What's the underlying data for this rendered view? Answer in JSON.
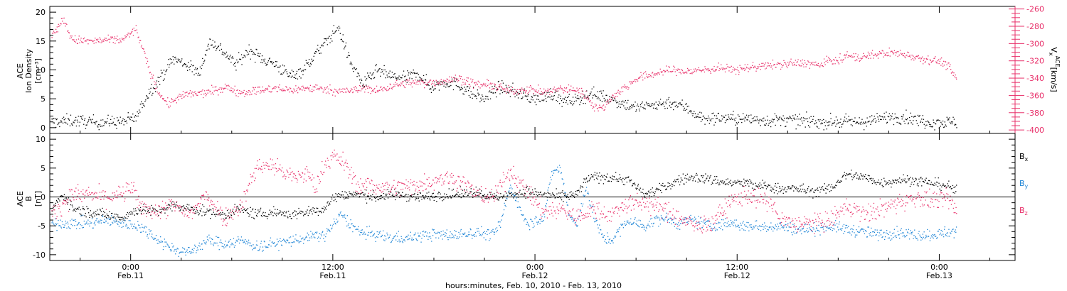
{
  "xlabel": "hours:minutes, Feb. 10, 2010 - Feb. 13, 2010",
  "colors": {
    "black": "#000000",
    "magenta": "#e8306a",
    "blue": "#1f85d6"
  },
  "chart_data": [
    {
      "type": "scatter",
      "panel": "top",
      "ylabel_lines": [
        "ACE",
        "Ion Density"
      ],
      "yunit": "[cm⁻³]",
      "ylim": [
        -1,
        21
      ],
      "yticks": [
        "0",
        "5",
        "10",
        "15",
        "20"
      ],
      "y2label_main": "V",
      "y2label_sub": "x",
      "y2label_sup": "ACE",
      "y2unit": "[km/s]",
      "y2lim": [
        -404,
        -257
      ],
      "y2ticks": [
        "-260",
        "-280",
        "-300",
        "-320",
        "-340",
        "-360",
        "-380",
        "-400"
      ],
      "x_unit": "hours since 00:00 Feb. 10, 2010",
      "xlim": [
        19.2,
        76.5
      ],
      "series": [
        {
          "var": "density",
          "axis": "left",
          "color": "#000000",
          "x": [
            19.3,
            20.5,
            22.0,
            23.5,
            24.3,
            25.0,
            25.7,
            26.5,
            27.3,
            28.0,
            28.7,
            29.4,
            30.2,
            31.0,
            31.8,
            32.6,
            33.4,
            34.2,
            35.0,
            35.6,
            36.3,
            37.0,
            37.8,
            38.6,
            39.4,
            40.2,
            41.0,
            41.8,
            42.6,
            43.4,
            44.2,
            45.0,
            45.8,
            46.6,
            47.4,
            48.2,
            49.0,
            49.7,
            50.5,
            51.3,
            52.0,
            53.0,
            54.0,
            55.0,
            56.0,
            57.0,
            58.0,
            59.0,
            60.0,
            61.0,
            62.0,
            63.0,
            64.0,
            65.0,
            66.0,
            67.0,
            68.0,
            69.0,
            70.0,
            71.5,
            73.0
          ],
          "y": [
            1.0,
            1.3,
            1.0,
            1.1,
            1.8,
            6.0,
            8.5,
            12.0,
            11.0,
            9.5,
            15.0,
            13.5,
            11.0,
            13.5,
            12.0,
            11.0,
            9.0,
            10.0,
            13.0,
            15.0,
            17.5,
            11.5,
            7.5,
            10.0,
            9.0,
            8.5,
            9.5,
            7.0,
            8.0,
            7.5,
            6.0,
            5.0,
            7.0,
            6.5,
            5.5,
            5.0,
            6.0,
            4.5,
            5.0,
            6.0,
            5.5,
            4.5,
            3.5,
            4.0,
            4.5,
            3.5,
            1.5,
            1.8,
            1.6,
            1.5,
            1.3,
            1.4,
            1.2,
            1.0,
            1.1,
            1.0,
            1.2,
            2.0,
            1.8,
            1.0,
            1.0
          ]
        },
        {
          "var": "Vx",
          "axis": "right",
          "color": "#e8306a",
          "x": [
            19.3,
            20.0,
            20.5,
            21.5,
            22.5,
            23.5,
            24.3,
            25.0,
            25.6,
            26.2,
            26.8,
            27.5,
            28.3,
            29.0,
            29.6,
            30.5,
            31.5,
            32.5,
            33.5,
            34.5,
            35.5,
            36.5,
            37.5,
            38.0,
            38.5,
            39.5,
            40.5,
            41.5,
            42.5,
            43.5,
            44.5,
            45.5,
            46.5,
            47.5,
            48.5,
            49.5,
            50.5,
            51.0,
            51.5,
            52.0,
            52.5,
            53.0,
            53.5,
            54.0,
            55.0,
            56.0,
            57.0,
            58.0,
            59.0,
            60.0,
            61.0,
            62.0,
            63.0,
            64.0,
            65.0,
            65.5,
            66.0,
            66.5,
            67.0,
            68.0,
            69.0,
            70.0,
            71.0,
            72.0,
            72.5,
            73.0
          ],
          "y": [
            -290,
            -272,
            -295,
            -297,
            -296,
            -295,
            -283,
            -325,
            -355,
            -370,
            -362,
            -358,
            -357,
            -354,
            -350,
            -356,
            -354,
            -352,
            -353,
            -351,
            -352,
            -355,
            -353,
            -350,
            -355,
            -348,
            -345,
            -345,
            -343,
            -340,
            -347,
            -348,
            -355,
            -352,
            -356,
            -352,
            -353,
            -360,
            -372,
            -375,
            -362,
            -355,
            -348,
            -340,
            -335,
            -330,
            -332,
            -330,
            -328,
            -330,
            -326,
            -325,
            -323,
            -322,
            -325,
            -318,
            -320,
            -313,
            -316,
            -313,
            -310,
            -312,
            -317,
            -320,
            -325,
            -342
          ]
        }
      ]
    },
    {
      "type": "scatter",
      "panel": "bottom",
      "ylabel_lines": [
        "ACE",
        "B"
      ],
      "yunit": "[nT]",
      "ylim": [
        -11,
        11
      ],
      "yticks": [
        "-10",
        "-5",
        "0",
        "5",
        "10"
      ],
      "x_unit": "hours since 00:00 Feb. 10, 2010",
      "xlim": [
        19.2,
        76.5
      ],
      "xticks": [
        {
          "x": 24,
          "time": "0:00",
          "date": "Feb.11"
        },
        {
          "x": 36,
          "time": "12:00",
          "date": "Feb.11"
        },
        {
          "x": 48,
          "time": "0:00",
          "date": "Feb.12"
        },
        {
          "x": 60,
          "time": "12:00",
          "date": "Feb.12"
        },
        {
          "x": 72,
          "time": "0:00",
          "date": "Feb.13"
        }
      ],
      "legend_position": "right",
      "series": [
        {
          "name": "B",
          "sub": "x",
          "color": "#000000",
          "x": [
            19.3,
            20.0,
            20.6,
            21.5,
            22.5,
            23.5,
            24.5,
            25.5,
            26.5,
            27.5,
            28.5,
            29.5,
            30.5,
            31.5,
            32.5,
            33.5,
            34.5,
            35.5,
            36.0,
            36.5,
            37.5,
            38.5,
            39.5,
            40.5,
            41.5,
            42.5,
            43.5,
            44.5,
            45.5,
            46.5,
            47.5,
            48.5,
            49.5,
            50.5,
            51.0,
            51.5,
            52.5,
            53.5,
            54.5,
            55.5,
            56.5,
            57.5,
            58.5,
            59.5,
            60.5,
            61.0,
            61.5,
            62.5,
            63.5,
            64.5,
            65.5,
            66.5,
            67.5,
            68.5,
            69.5,
            70.5,
            71.5,
            72.5,
            73.0
          ],
          "y": [
            -2.0,
            0.5,
            -2.0,
            -2.5,
            -3.0,
            -3.5,
            -2.0,
            -2.5,
            -1.5,
            -2.0,
            -2.5,
            -3.0,
            -2.0,
            -3.0,
            -2.5,
            -3.0,
            -2.5,
            -2.0,
            0.0,
            0.5,
            0.5,
            0.0,
            0.5,
            0.3,
            0.0,
            0.5,
            0.5,
            1.0,
            0.0,
            0.5,
            1.0,
            0.5,
            0.0,
            0.5,
            3.0,
            3.5,
            3.5,
            3.0,
            0.5,
            1.5,
            3.0,
            3.5,
            3.0,
            2.5,
            2.5,
            2.0,
            2.0,
            1.5,
            1.5,
            1.0,
            1.5,
            4.0,
            3.5,
            2.5,
            3.0,
            3.0,
            2.5,
            2.0,
            1.0
          ]
        },
        {
          "name": "B",
          "sub": "y",
          "color": "#1f85d6",
          "x": [
            19.3,
            20.5,
            21.5,
            22.5,
            23.5,
            24.5,
            25.5,
            26.5,
            27.5,
            28.5,
            29.5,
            30.5,
            31.5,
            32.5,
            33.5,
            34.5,
            35.5,
            36.5,
            37.5,
            38.5,
            39.5,
            40.5,
            41.5,
            42.5,
            43.5,
            44.5,
            45.5,
            46.0,
            46.5,
            47.5,
            48.5,
            49.0,
            49.5,
            50.0,
            50.5,
            51.0,
            51.5,
            52.0,
            52.5,
            53.5,
            54.5,
            55.5,
            56.5,
            57.5,
            58.5,
            59.5,
            60.5,
            61.5,
            62.5,
            63.5,
            64.5,
            65.5,
            66.5,
            67.5,
            68.5,
            69.5,
            70.5,
            71.5,
            72.5,
            73.0
          ],
          "y": [
            -4.5,
            -4.5,
            -4.5,
            -4.0,
            -4.5,
            -5.0,
            -7.0,
            -9.0,
            -9.5,
            -7.5,
            -8.0,
            -7.5,
            -8.5,
            -8.0,
            -7.5,
            -7.0,
            -6.5,
            -3.0,
            -6.0,
            -6.5,
            -7.0,
            -7.0,
            -6.5,
            -6.5,
            -6.5,
            -6.0,
            -6.5,
            -4.0,
            2.0,
            -4.5,
            -3.5,
            4.5,
            5.0,
            -3.0,
            -5.0,
            2.0,
            -3.5,
            -7.0,
            -7.5,
            -4.0,
            -5.0,
            -3.5,
            -4.5,
            -4.0,
            -5.0,
            -4.5,
            -5.0,
            -5.0,
            -5.0,
            -5.5,
            -5.5,
            -5.0,
            -5.5,
            -6.0,
            -6.5,
            -6.0,
            -6.5,
            -6.5,
            -6.0,
            -6.0
          ]
        },
        {
          "name": "B",
          "sub": "z",
          "color": "#e8306a",
          "x": [
            19.3,
            20.5,
            21.5,
            22.5,
            23.5,
            24.0,
            24.5,
            25.5,
            26.5,
            27.5,
            28.5,
            29.5,
            30.5,
            31.0,
            31.5,
            32.5,
            33.5,
            34.5,
            35.0,
            35.5,
            36.0,
            36.5,
            37.5,
            38.5,
            39.5,
            40.5,
            41.5,
            42.5,
            43.5,
            44.5,
            45.5,
            46.5,
            47.5,
            48.5,
            49.5,
            50.5,
            51.5,
            52.5,
            53.5,
            54.5,
            55.5,
            56.5,
            57.5,
            58.5,
            59.5,
            60.5,
            61.5,
            62.0,
            62.5,
            63.5,
            64.5,
            65.5,
            66.5,
            67.5,
            68.5,
            69.5,
            70.5,
            71.5,
            72.5,
            73.0
          ],
          "y": [
            -3.0,
            0.5,
            0.5,
            0.0,
            0.5,
            2.0,
            -1.5,
            -2.5,
            -1.5,
            -3.0,
            0.5,
            -3.5,
            -1.5,
            2.0,
            5.5,
            5.5,
            3.5,
            4.0,
            1.5,
            6.0,
            7.0,
            6.5,
            2.0,
            2.0,
            1.5,
            2.0,
            2.5,
            3.5,
            3.0,
            0.5,
            0.0,
            4.5,
            1.0,
            -2.5,
            -2.0,
            -3.5,
            -2.0,
            -3.0,
            -1.0,
            -1.0,
            -2.0,
            -3.5,
            -5.0,
            -4.5,
            -1.0,
            0.5,
            -0.5,
            -1.0,
            -4.0,
            -4.5,
            -4.5,
            -4.0,
            -1.5,
            -3.0,
            -2.0,
            -1.0,
            0.0,
            -0.5,
            -0.5,
            -2.0
          ]
        }
      ]
    }
  ]
}
